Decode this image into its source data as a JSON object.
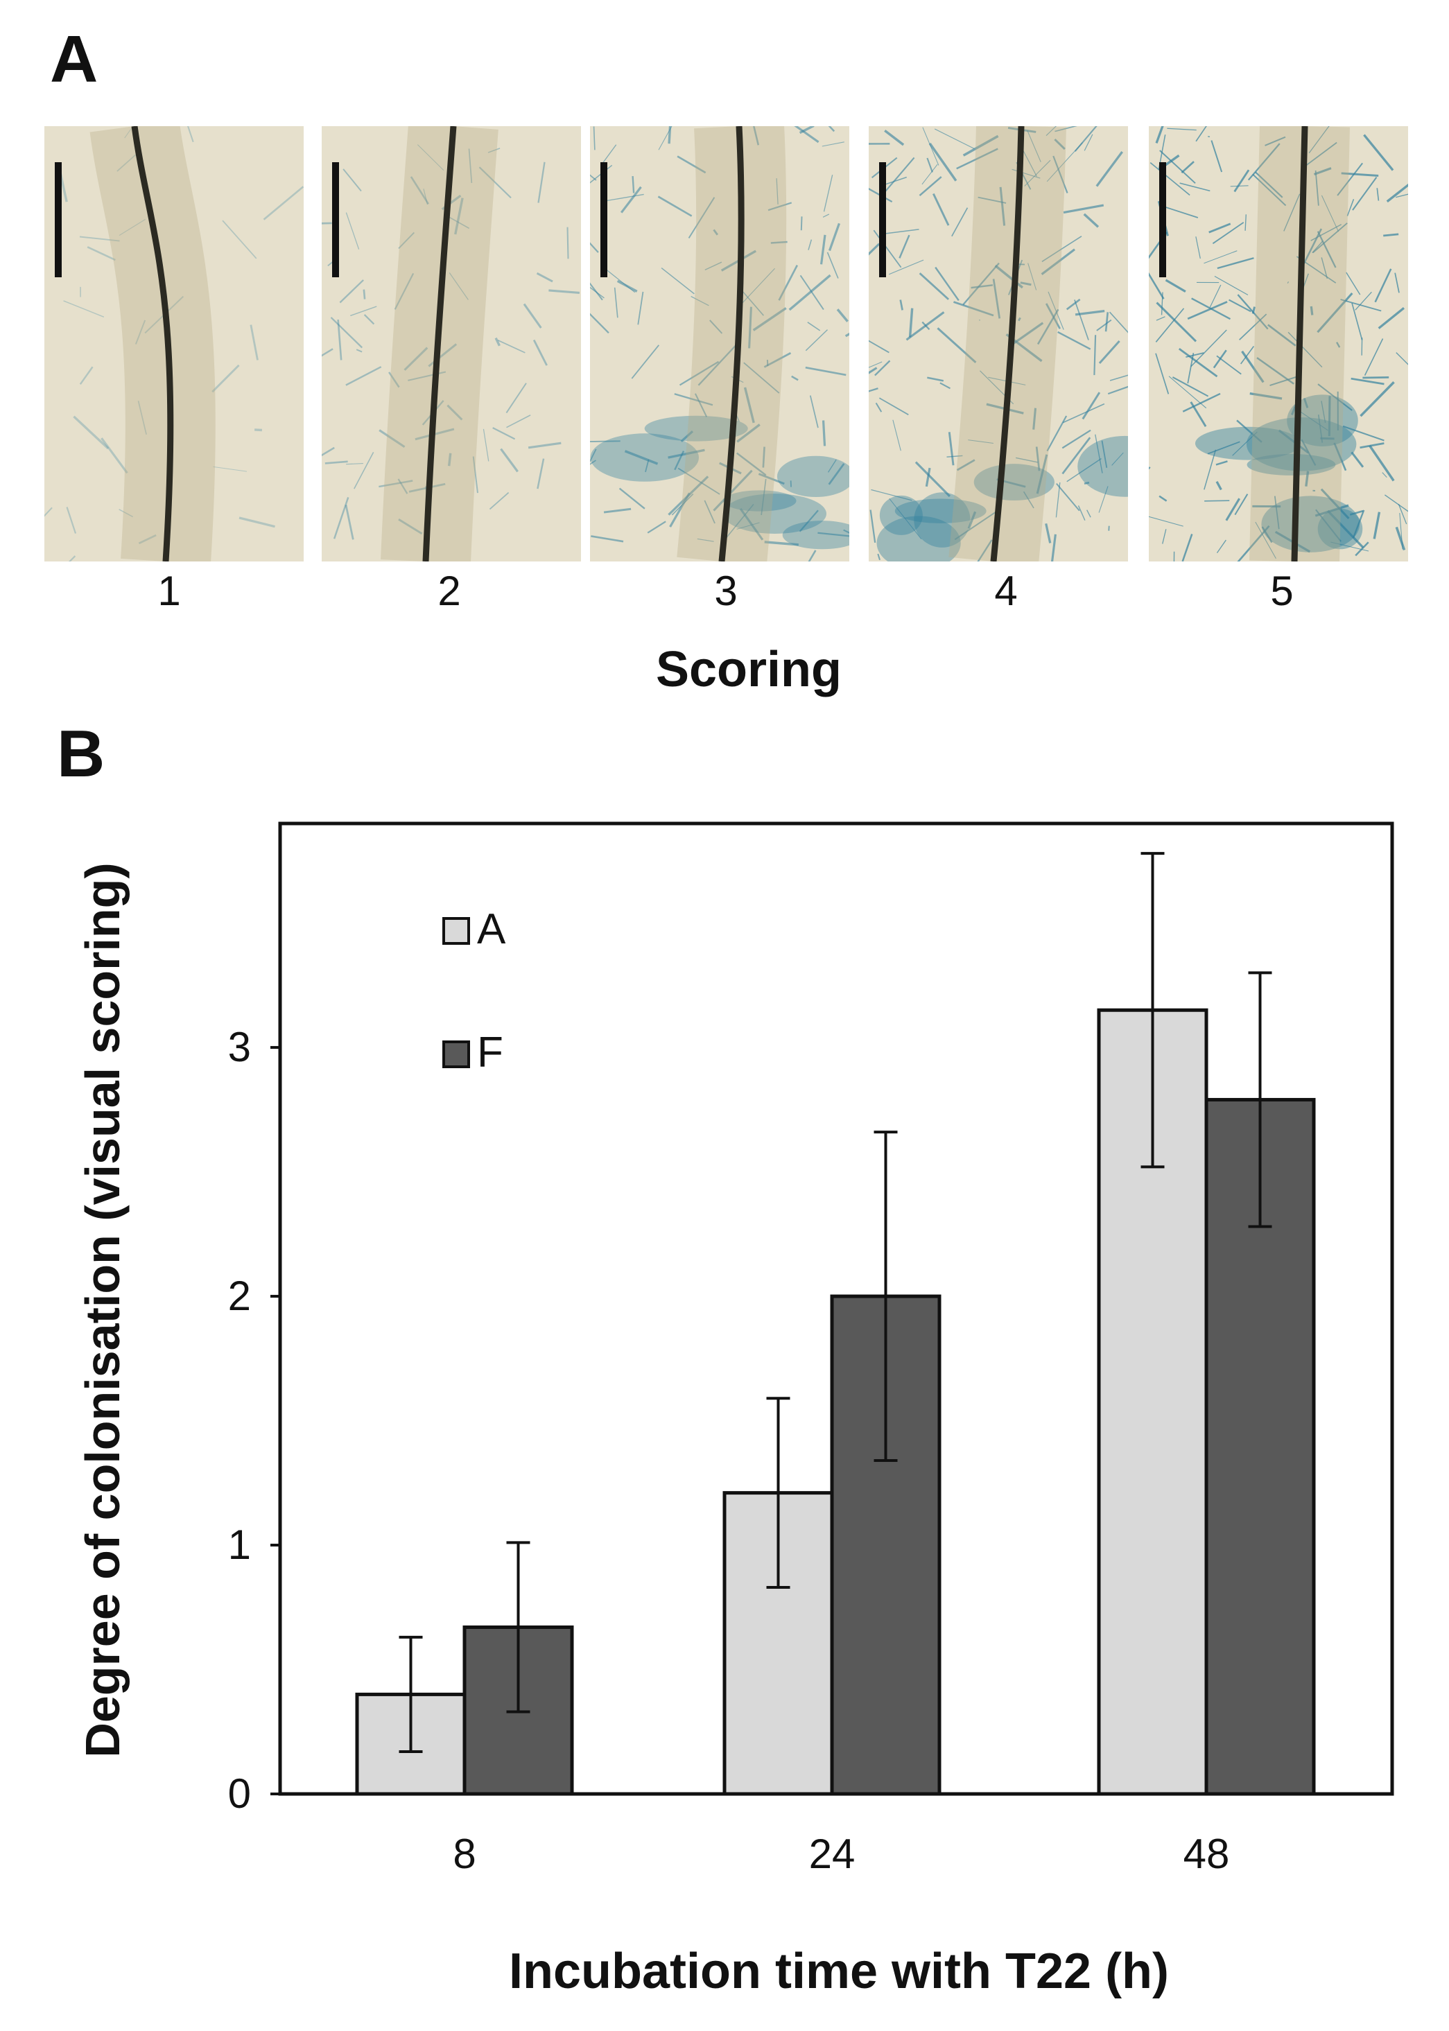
{
  "panel_a": {
    "letter": "A",
    "photos": [
      {
        "label": "1",
        "stain": 0.05
      },
      {
        "label": "2",
        "stain": 0.3
      },
      {
        "label": "3",
        "stain": 0.6
      },
      {
        "label": "4",
        "stain": 0.75
      },
      {
        "label": "5",
        "stain": 0.95
      }
    ],
    "xlabel": "Scoring"
  },
  "panel_b": {
    "letter": "B"
  },
  "colors": {
    "series_a": "#d9d9d9",
    "series_f": "#595959",
    "stain_blue": "#2f7f9e",
    "root_dark": "#2b2a22",
    "background_photo": "#e6e0cc"
  },
  "chart_data": {
    "type": "bar",
    "categories": [
      "8",
      "24",
      "48"
    ],
    "series": [
      {
        "name": "A",
        "values": [
          0.4,
          1.21,
          3.15
        ],
        "errors": [
          0.23,
          0.38,
          0.63
        ]
      },
      {
        "name": "F",
        "values": [
          0.67,
          2.0,
          2.79
        ],
        "errors": [
          0.34,
          0.66,
          0.51
        ]
      }
    ],
    "xlabel": "Incubation time with T22 (h)",
    "ylabel": "Degree of colonisation (visual scoring)",
    "ylim": [
      0,
      3.9
    ],
    "yticks": [
      0,
      1,
      2,
      3
    ],
    "legend_position": "top-left",
    "grid": false
  }
}
